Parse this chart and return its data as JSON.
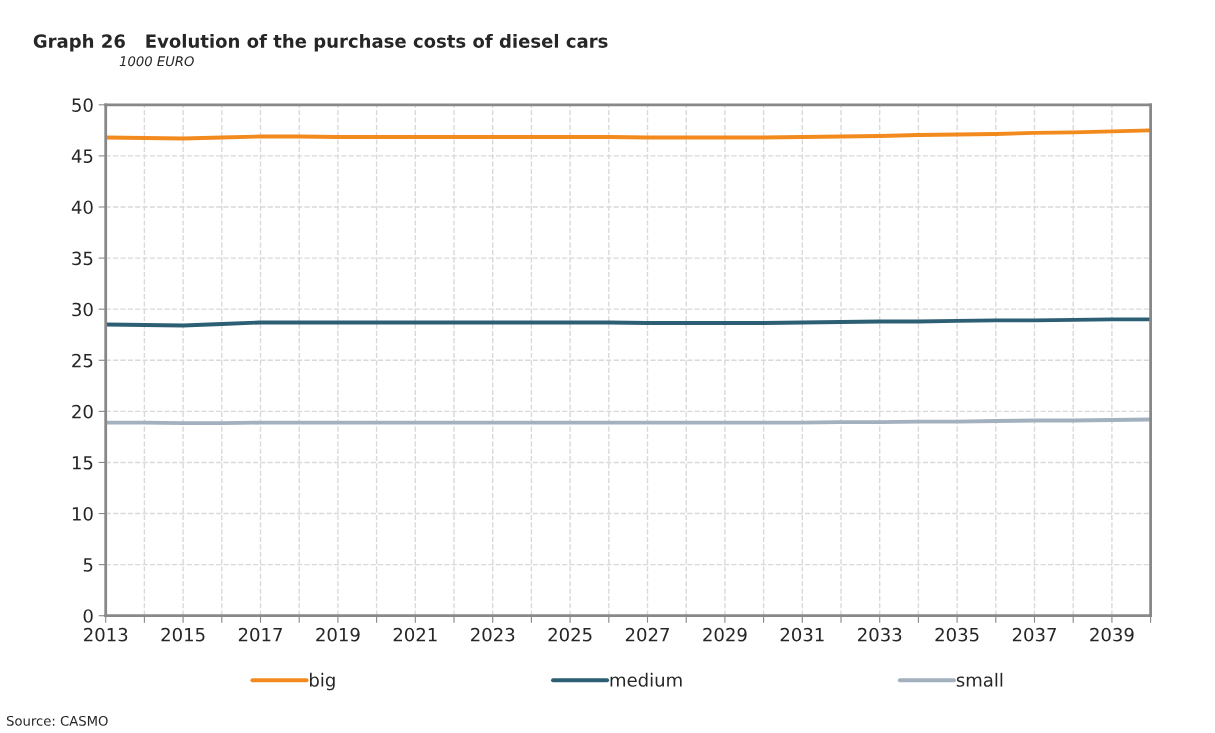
{
  "chart_data": {
    "type": "line",
    "title": "Graph 26   Evolution of the purchase costs of diesel cars",
    "subtitle": "1000 EURO",
    "annotations": [
      "Source: CASMO"
    ],
    "x": [
      2013,
      2014,
      2015,
      2016,
      2017,
      2018,
      2019,
      2020,
      2021,
      2022,
      2023,
      2024,
      2025,
      2026,
      2027,
      2028,
      2029,
      2030,
      2031,
      2032,
      2033,
      2034,
      2035,
      2036,
      2037,
      2038,
      2039,
      2040
    ],
    "series": [
      {
        "name": "big",
        "color": "#f28a1e",
        "values": [
          46.8,
          46.75,
          46.7,
          46.8,
          46.9,
          46.9,
          46.85,
          46.85,
          46.85,
          46.85,
          46.85,
          46.85,
          46.85,
          46.85,
          46.8,
          46.8,
          46.8,
          46.8,
          46.85,
          46.9,
          46.95,
          47.05,
          47.1,
          47.15,
          47.25,
          47.3,
          47.4,
          47.5
        ]
      },
      {
        "name": "medium",
        "color": "#2c5f73",
        "values": [
          28.5,
          28.45,
          28.4,
          28.55,
          28.7,
          28.7,
          28.7,
          28.7,
          28.7,
          28.7,
          28.7,
          28.7,
          28.7,
          28.7,
          28.65,
          28.65,
          28.65,
          28.65,
          28.7,
          28.75,
          28.8,
          28.8,
          28.85,
          28.9,
          28.9,
          28.95,
          29.0,
          29.0
        ]
      },
      {
        "name": "small",
        "color": "#a3b1bf",
        "values": [
          18.9,
          18.9,
          18.85,
          18.85,
          18.9,
          18.9,
          18.9,
          18.9,
          18.9,
          18.9,
          18.9,
          18.9,
          18.9,
          18.9,
          18.9,
          18.9,
          18.9,
          18.9,
          18.9,
          18.95,
          18.95,
          19.0,
          19.0,
          19.05,
          19.1,
          19.1,
          19.15,
          19.2
        ]
      }
    ],
    "xlim": [
      2013,
      2040
    ],
    "xticks": [
      2013,
      {
        "value": 2014,
        "label": null
      },
      2015,
      {
        "value": 2016,
        "label": null
      },
      2017,
      {
        "value": 2018,
        "label": null
      },
      2019,
      {
        "value": 2020,
        "label": null
      },
      2021,
      {
        "value": 2022,
        "label": null
      },
      2023,
      {
        "value": 2024,
        "label": null
      },
      2025,
      {
        "value": 2026,
        "label": null
      },
      2027,
      {
        "value": 2028,
        "label": null
      },
      2029,
      {
        "value": 2030,
        "label": null
      },
      2031,
      {
        "value": 2032,
        "label": null
      },
      2033,
      {
        "value": 2034,
        "label": null
      },
      2035,
      {
        "value": 2036,
        "label": null
      },
      2037,
      {
        "value": 2038,
        "label": null
      },
      2039,
      {
        "value": 2040,
        "label": null
      }
    ],
    "ylim": [
      0,
      50
    ],
    "yticks": [
      0,
      5,
      10,
      15,
      20,
      25,
      30,
      35,
      40,
      45,
      50
    ],
    "grid": true,
    "legend": "bottom",
    "line_style": "solid",
    "marker": "none"
  }
}
